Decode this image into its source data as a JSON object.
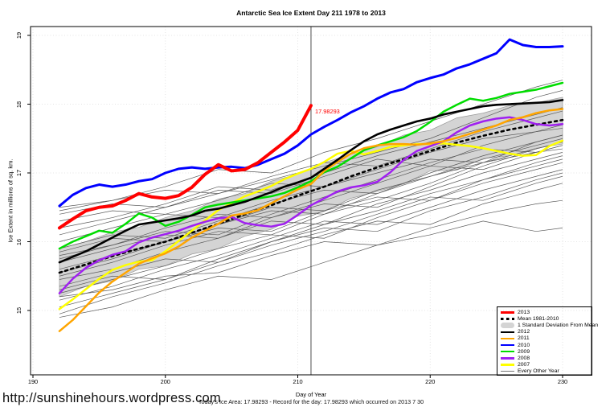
{
  "header": {
    "title": "Antarctic Sea Ice Extent Day 211 1978 to 2013"
  },
  "axes": {
    "x_label": "Day of Year",
    "y_label": "Ice Extent in millions of sq. km.",
    "x_ticks": [
      190,
      200,
      210,
      220,
      230
    ],
    "y_ticks": [
      15,
      16,
      17,
      18,
      19
    ]
  },
  "annotation": {
    "value_label": "17.98293",
    "day": 211
  },
  "footer": {
    "url": "http://sunshinehours.wordpress.com",
    "caption": "Today's Ice Area: 17.98293  - Record for the day: 17.98293 which occurred on 2013 7 30"
  },
  "legend": {
    "items": [
      {
        "label": "2013",
        "kind": "line",
        "color": "#ff0000",
        "weight": 3.6
      },
      {
        "label": "Mean 1981-2010",
        "kind": "dashed",
        "color": "#000000",
        "weight": 2.6
      },
      {
        "label": "1 Standard Deviation From Mean",
        "kind": "band",
        "color": "#d4d4d4",
        "weight": 7
      },
      {
        "label": "2012",
        "kind": "line",
        "color": "#000000",
        "weight": 2.6
      },
      {
        "label": "2011",
        "kind": "line",
        "color": "#ffa500",
        "weight": 2.6
      },
      {
        "label": "2010",
        "kind": "line",
        "color": "#0000ff",
        "weight": 2.6
      },
      {
        "label": "2009",
        "kind": "line",
        "color": "#00dd00",
        "weight": 2.6
      },
      {
        "label": "2008",
        "kind": "line",
        "color": "#a020f0",
        "weight": 2.6
      },
      {
        "label": "2007",
        "kind": "line",
        "color": "#ffff00",
        "weight": 2.6
      },
      {
        "label": "Every Other Year",
        "kind": "line",
        "color": "#777777",
        "weight": 0.8
      }
    ]
  },
  "chart_data": {
    "type": "line",
    "title": "Antarctic Sea Ice Extent Day 211 1978 to 2013",
    "xlabel": "Day of Year",
    "ylabel": "Ice Extent in millions of sq. km.",
    "xlim": [
      189.5,
      231.5
    ],
    "ylim": [
      14.1,
      19.15
    ],
    "x_ticks": [
      190,
      200,
      210,
      220,
      230
    ],
    "y_ticks": [
      15,
      16,
      17,
      18,
      19
    ],
    "grid": true,
    "legend_position": "bottom-right",
    "highlight_day": 211,
    "record_value": 17.98293,
    "band": {
      "name": "1 Standard Deviation From Mean",
      "fill": "#d4d4d4",
      "edge": "#9a9a9a",
      "days": [
        192,
        194,
        196,
        198,
        200,
        202,
        204,
        206,
        208,
        210,
        212,
        214,
        216,
        218,
        220,
        222,
        224,
        226,
        228,
        230
      ],
      "top": [
        15.9,
        16.0,
        16.14,
        16.21,
        16.35,
        16.45,
        16.62,
        16.7,
        16.88,
        16.98,
        17.15,
        17.27,
        17.38,
        17.55,
        17.62,
        17.8,
        17.87,
        17.98,
        18.02,
        18.1
      ],
      "bottom": [
        15.2,
        15.35,
        15.43,
        15.6,
        15.65,
        15.82,
        15.9,
        16.08,
        16.18,
        16.37,
        16.44,
        16.63,
        16.73,
        16.84,
        17.03,
        17.04,
        17.21,
        17.25,
        17.36,
        17.42
      ]
    },
    "series": [
      {
        "name": "Mean 1981-2010",
        "color": "#000000",
        "width": 2.6,
        "dash": "3 4.5",
        "days": [
          192,
          194,
          196,
          198,
          200,
          202,
          204,
          206,
          208,
          210,
          212,
          214,
          216,
          218,
          220,
          222,
          224,
          226,
          228,
          230
        ],
        "values": [
          15.55,
          15.67,
          15.79,
          15.9,
          16.0,
          16.13,
          16.26,
          16.4,
          16.53,
          16.67,
          16.8,
          16.95,
          17.08,
          17.2,
          17.32,
          17.44,
          17.54,
          17.63,
          17.7,
          17.77
        ]
      },
      {
        "name": "2007",
        "color": "#ffff00",
        "width": 2.5,
        "day_start": 192,
        "values": [
          15.02,
          15.16,
          15.31,
          15.46,
          15.59,
          15.66,
          15.71,
          15.73,
          15.86,
          16.01,
          16.16,
          16.31,
          16.46,
          16.56,
          16.66,
          16.73,
          16.81,
          16.91,
          16.99,
          17.06,
          17.16,
          17.28,
          17.32,
          17.27,
          17.32,
          17.38,
          17.4,
          17.42,
          17.42,
          17.43,
          17.41,
          17.39,
          17.36,
          17.32,
          17.28,
          17.25,
          17.26,
          17.39,
          17.47
        ]
      },
      {
        "name": "2008",
        "color": "#a020f0",
        "width": 2.5,
        "day_start": 192,
        "values": [
          15.25,
          15.46,
          15.62,
          15.73,
          15.81,
          15.86,
          15.99,
          16.06,
          16.11,
          16.16,
          16.23,
          16.29,
          16.34,
          16.36,
          16.27,
          16.24,
          16.22,
          16.26,
          16.39,
          16.53,
          16.63,
          16.73,
          16.79,
          16.82,
          16.87,
          17.01,
          17.19,
          17.32,
          17.39,
          17.46,
          17.59,
          17.69,
          17.75,
          17.79,
          17.81,
          17.77,
          17.71,
          17.69,
          17.71
        ]
      },
      {
        "name": "2009",
        "color": "#00dd00",
        "width": 2.5,
        "day_start": 192,
        "values": [
          15.9,
          16.0,
          16.08,
          16.16,
          16.13,
          16.26,
          16.41,
          16.35,
          16.23,
          16.29,
          16.39,
          16.5,
          16.54,
          16.57,
          16.6,
          16.63,
          16.66,
          16.71,
          16.79,
          16.88,
          17.01,
          17.09,
          17.21,
          17.33,
          17.4,
          17.46,
          17.52,
          17.61,
          17.74,
          17.89,
          17.99,
          18.08,
          18.05,
          18.09,
          18.15,
          18.18,
          18.21,
          18.26,
          18.31
        ]
      },
      {
        "name": "2011",
        "color": "#ffa500",
        "width": 2.5,
        "day_start": 192,
        "values": [
          14.7,
          14.86,
          15.06,
          15.26,
          15.42,
          15.55,
          15.68,
          15.76,
          15.83,
          15.93,
          16.06,
          16.16,
          16.26,
          16.38,
          16.41,
          16.46,
          16.56,
          16.66,
          16.76,
          16.84,
          17.03,
          17.16,
          17.28,
          17.36,
          17.4,
          17.42,
          17.42,
          17.41,
          17.43,
          17.46,
          17.51,
          17.57,
          17.63,
          17.69,
          17.77,
          17.81,
          17.87,
          17.91,
          17.93
        ]
      },
      {
        "name": "2012",
        "color": "#000000",
        "width": 2.6,
        "day_start": 192,
        "values": [
          15.7,
          15.78,
          15.86,
          15.96,
          16.06,
          16.16,
          16.25,
          16.28,
          16.31,
          16.34,
          16.38,
          16.45,
          16.48,
          16.53,
          16.58,
          16.65,
          16.72,
          16.8,
          16.86,
          16.93,
          17.06,
          17.19,
          17.33,
          17.46,
          17.56,
          17.63,
          17.69,
          17.75,
          17.79,
          17.85,
          17.89,
          17.93,
          17.97,
          17.99,
          18.0,
          18.01,
          18.02,
          18.03,
          18.06
        ]
      },
      {
        "name": "2010",
        "color": "#0000ff",
        "width": 3.0,
        "day_start": 192,
        "values": [
          16.52,
          16.68,
          16.78,
          16.83,
          16.8,
          16.83,
          16.88,
          16.91,
          17.0,
          17.06,
          17.08,
          17.06,
          17.08,
          17.09,
          17.07,
          17.12,
          17.2,
          17.28,
          17.4,
          17.56,
          17.67,
          17.77,
          17.88,
          17.97,
          18.08,
          18.17,
          18.22,
          18.32,
          18.38,
          18.43,
          18.52,
          18.58,
          18.66,
          18.74,
          18.94,
          18.86,
          18.83,
          18.83,
          18.84
        ]
      },
      {
        "name": "2013",
        "color": "#ff0000",
        "width": 4.0,
        "day_start": 192,
        "values": [
          16.2,
          16.33,
          16.45,
          16.5,
          16.52,
          16.6,
          16.7,
          16.65,
          16.63,
          16.67,
          16.79,
          16.98,
          17.12,
          17.03,
          17.05,
          17.15,
          17.3,
          17.45,
          17.62,
          17.98
        ]
      }
    ],
    "other_years": {
      "name": "Every Other Year",
      "color": "#5a5a5a",
      "days": [
        192,
        196,
        200,
        204,
        208,
        212,
        216,
        220,
        224,
        228,
        230
      ],
      "lines": [
        [
          16.5,
          16.6,
          16.75,
          16.7,
          16.9,
          17.1,
          17.3,
          17.5,
          17.8,
          18.1,
          18.2
        ],
        [
          16.3,
          16.45,
          16.4,
          16.6,
          16.85,
          16.8,
          17.05,
          17.3,
          17.5,
          17.6,
          17.65
        ],
        [
          16.1,
          16.3,
          16.5,
          16.75,
          16.7,
          16.95,
          17.2,
          17.1,
          17.4,
          17.6,
          17.7
        ],
        [
          15.9,
          16.1,
          16.05,
          16.3,
          16.55,
          16.75,
          16.7,
          17.0,
          17.25,
          17.45,
          17.55
        ],
        [
          15.8,
          15.95,
          16.2,
          16.4,
          16.35,
          16.6,
          16.85,
          17.1,
          17.05,
          17.3,
          17.4
        ],
        [
          15.7,
          15.9,
          16.1,
          16.05,
          16.35,
          16.55,
          16.5,
          16.8,
          17.1,
          17.35,
          17.45
        ],
        [
          15.6,
          15.8,
          16.0,
          16.25,
          16.45,
          16.4,
          16.7,
          16.95,
          17.2,
          17.4,
          17.5
        ],
        [
          15.5,
          15.7,
          15.95,
          16.15,
          16.1,
          16.4,
          16.6,
          16.85,
          17.15,
          17.3,
          17.35
        ],
        [
          15.45,
          15.6,
          15.85,
          16.05,
          16.3,
          16.25,
          16.55,
          16.75,
          17.0,
          17.2,
          17.3
        ],
        [
          15.35,
          15.55,
          15.75,
          15.7,
          16.0,
          16.25,
          16.45,
          16.7,
          16.9,
          17.15,
          17.25
        ],
        [
          15.25,
          15.45,
          15.65,
          15.9,
          16.1,
          16.05,
          16.35,
          16.6,
          16.85,
          17.05,
          17.15
        ],
        [
          15.15,
          15.35,
          15.6,
          15.8,
          16.05,
          16.3,
          16.25,
          16.5,
          16.75,
          16.95,
          17.05
        ],
        [
          15.05,
          15.25,
          15.45,
          15.7,
          15.95,
          16.15,
          16.4,
          16.65,
          16.6,
          16.85,
          16.95
        ],
        [
          14.95,
          15.2,
          15.4,
          15.65,
          15.85,
          16.1,
          16.3,
          16.25,
          16.55,
          16.75,
          16.85
        ],
        [
          15.3,
          15.5,
          15.45,
          15.75,
          16.0,
          16.2,
          16.15,
          16.45,
          16.65,
          16.9,
          17.0
        ],
        [
          15.55,
          15.75,
          16.0,
          16.2,
          16.15,
          16.45,
          16.65,
          16.6,
          16.9,
          17.1,
          17.2
        ],
        [
          15.85,
          16.05,
          16.0,
          16.25,
          16.5,
          16.45,
          16.75,
          16.95,
          17.15,
          17.35,
          17.45
        ],
        [
          16.0,
          16.2,
          16.4,
          16.35,
          16.6,
          16.8,
          17.0,
          17.2,
          17.15,
          17.45,
          17.55
        ],
        [
          16.2,
          16.35,
          16.55,
          16.8,
          16.75,
          17.0,
          17.25,
          17.45,
          17.65,
          17.85,
          17.95
        ],
        [
          16.4,
          16.55,
          16.5,
          16.7,
          16.95,
          17.15,
          17.1,
          17.35,
          17.6,
          17.8,
          17.9
        ],
        [
          15.2,
          15.3,
          15.5,
          15.55,
          15.8,
          16.0,
          15.95,
          16.2,
          16.4,
          16.55,
          16.6
        ],
        [
          14.9,
          15.05,
          15.3,
          15.5,
          15.45,
          15.7,
          15.95,
          16.1,
          16.3,
          16.15,
          16.2
        ],
        [
          16.45,
          16.6,
          16.8,
          17.05,
          17.0,
          17.3,
          17.5,
          17.75,
          18.0,
          18.25,
          18.35
        ],
        [
          15.75,
          15.95,
          16.15,
          16.1,
          16.4,
          16.65,
          16.9,
          17.15,
          17.35,
          17.3,
          17.4
        ]
      ]
    }
  }
}
